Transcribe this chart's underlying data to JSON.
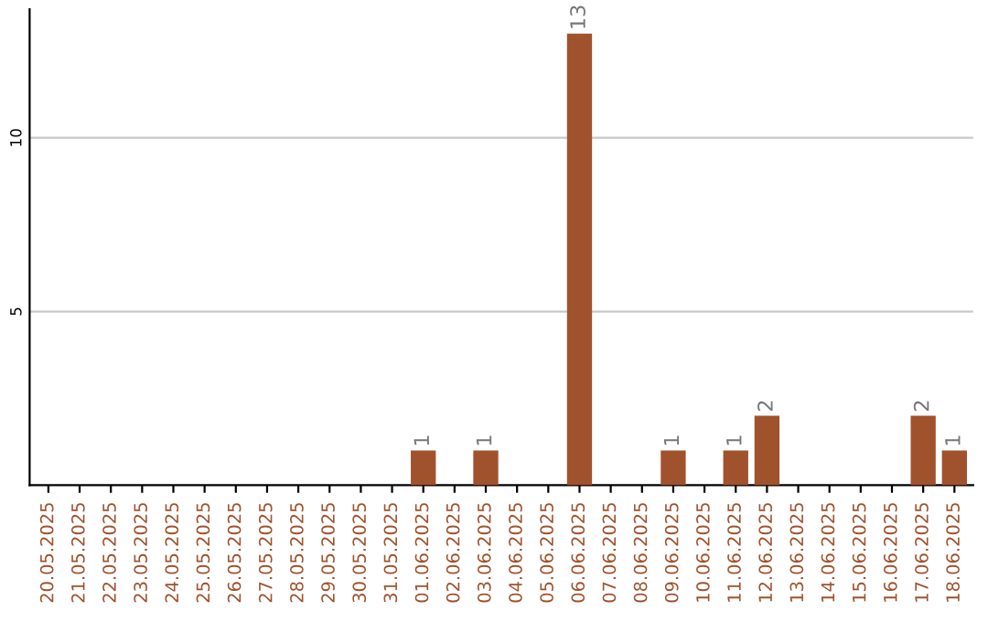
{
  "chart_data": {
    "type": "bar",
    "categories": [
      "20.05.2025",
      "21.05.2025",
      "22.05.2025",
      "23.05.2025",
      "24.05.2025",
      "25.05.2025",
      "26.05.2025",
      "27.05.2025",
      "28.05.2025",
      "29.05.2025",
      "30.05.2025",
      "31.05.2025",
      "01.06.2025",
      "02.06.2025",
      "03.06.2025",
      "04.06.2025",
      "05.06.2025",
      "06.06.2025",
      "07.06.2025",
      "08.06.2025",
      "09.06.2025",
      "10.06.2025",
      "11.06.2025",
      "12.06.2025",
      "13.06.2025",
      "14.06.2025",
      "15.06.2025",
      "16.06.2025",
      "17.06.2025",
      "18.06.2025"
    ],
    "values": [
      0,
      0,
      0,
      0,
      0,
      0,
      0,
      0,
      0,
      0,
      0,
      0,
      1,
      0,
      1,
      0,
      0,
      13,
      0,
      0,
      1,
      0,
      1,
      2,
      0,
      0,
      0,
      0,
      2,
      1
    ],
    "value_labels": [
      null,
      null,
      null,
      null,
      null,
      null,
      null,
      null,
      null,
      null,
      null,
      null,
      "1",
      null,
      "1",
      null,
      null,
      "13",
      null,
      null,
      "1",
      null,
      "1",
      "2",
      null,
      null,
      null,
      null,
      "2",
      "1"
    ],
    "color": "#a0522d",
    "ylim": [
      0,
      13.7
    ],
    "yticks": [
      5,
      10
    ],
    "grid": "y"
  }
}
